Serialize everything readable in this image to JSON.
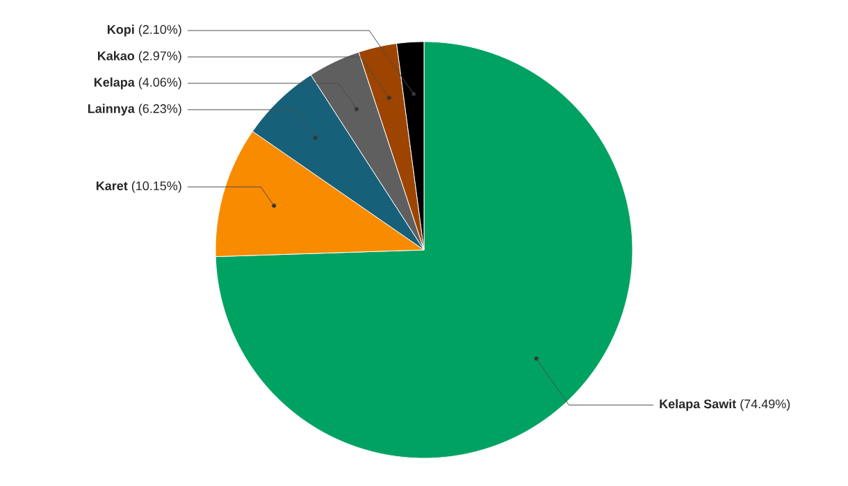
{
  "chart_data": {
    "type": "pie",
    "categories": [
      "Kelapa Sawit",
      "Karet",
      "Lainnya",
      "Kelapa",
      "Kakao",
      "Kopi"
    ],
    "values": [
      74.49,
      10.15,
      6.23,
      4.06,
      2.97,
      2.1
    ],
    "value_labels": [
      "(74.49%)",
      "(10.15%)",
      "(6.23%)",
      "(4.06%)",
      "(2.97%)",
      "(2.10%)"
    ],
    "colors": [
      "#00a262",
      "#f98b00",
      "#16607a",
      "#5f5f5f",
      "#9c4400",
      "#000000"
    ]
  }
}
